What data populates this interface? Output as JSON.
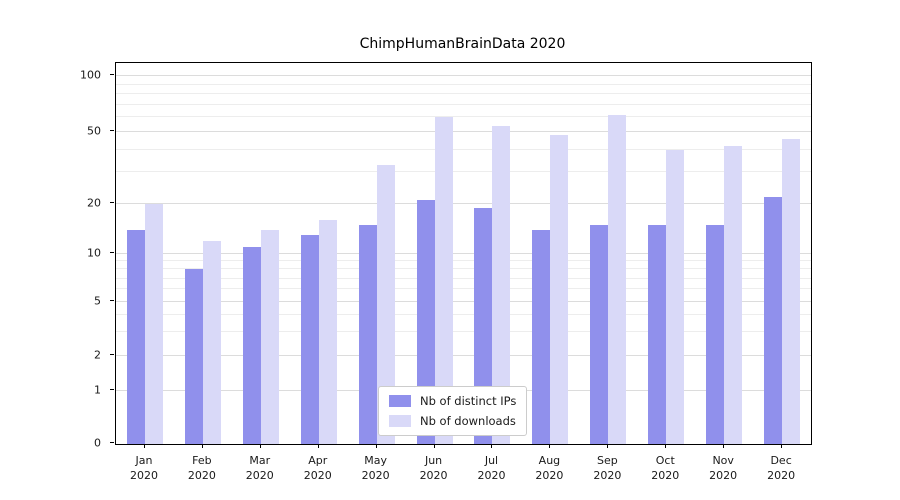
{
  "chart_data": {
    "type": "bar",
    "title": "ChimpHumanBrainData 2020",
    "categories": [
      "Jan 2020",
      "Feb 2020",
      "Mar 2020",
      "Apr 2020",
      "May 2020",
      "Jun 2020",
      "Jul 2020",
      "Aug 2020",
      "Sep 2020",
      "Oct 2020",
      "Nov 2020",
      "Dec 2020"
    ],
    "series": [
      {
        "name": "Nb of distinct IPs",
        "color": "#9090ec",
        "values": [
          14,
          8,
          11,
          13,
          15,
          21,
          19,
          14,
          15,
          15,
          15,
          22
        ]
      },
      {
        "name": "Nb of downloads",
        "color": "#d9d9f8",
        "values": [
          20,
          12,
          14,
          16,
          33,
          60,
          54,
          48,
          62,
          40,
          42,
          46
        ]
      }
    ],
    "y_axis": {
      "scale": "symlog",
      "ticks": [
        0,
        1,
        2,
        5,
        10,
        20,
        50,
        100
      ],
      "minor_gridlines": [
        3,
        4,
        6,
        7,
        8,
        9,
        30,
        40,
        60,
        70,
        80,
        90
      ]
    },
    "xlabel": "",
    "ylabel": "",
    "grid": true,
    "legend_position": "lower-center-inside"
  }
}
